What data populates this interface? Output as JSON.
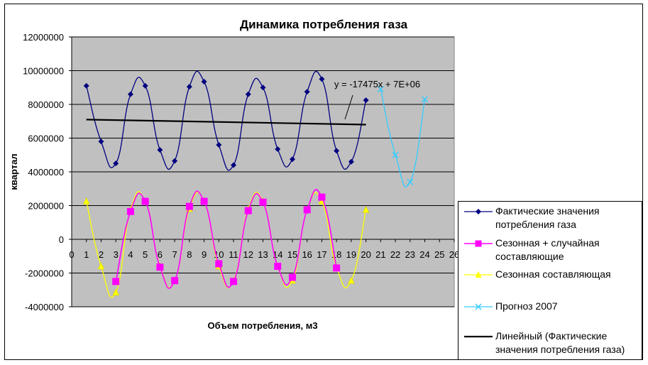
{
  "chart_data": {
    "type": "line",
    "title": "Динамика потребления газа",
    "xlabel": "Объем потребления, м3",
    "ylabel": "квартал",
    "xlim": [
      0,
      26
    ],
    "ylim": [
      -4000000,
      12000000
    ],
    "x_ticks": [
      "0",
      "1",
      "2",
      "3",
      "4",
      "5",
      "6",
      "7",
      "8",
      "9",
      "10",
      "11",
      "12",
      "13",
      "14",
      "15",
      "16",
      "17",
      "18",
      "19",
      "20",
      "21",
      "22",
      "23",
      "24",
      "25",
      "26"
    ],
    "y_ticks": [
      "12000000",
      "10000000",
      "8000000",
      "6000000",
      "4000000",
      "2000000",
      "0",
      "-2000000",
      "-4000000"
    ],
    "grid": "horizontal",
    "plot_background": "#c0c0c0",
    "legend_position": "right",
    "annotation": "y = -17475x + 7E+06",
    "series": [
      {
        "name": "Фактические значения потребления газа",
        "color": "#000080",
        "marker": "diamond",
        "x": [
          1,
          2,
          3,
          4,
          5,
          6,
          7,
          8,
          9,
          10,
          11,
          12,
          13,
          14,
          15,
          16,
          17,
          18,
          19,
          20
        ],
        "y": [
          9100000,
          5800000,
          4500000,
          8600000,
          9100000,
          5300000,
          4650000,
          9050000,
          9350000,
          5600000,
          4400000,
          8600000,
          9000000,
          5350000,
          4750000,
          8750000,
          9500000,
          5250000,
          4600000,
          8250000
        ]
      },
      {
        "name": "Сезонная + случайная составляющие",
        "color": "#ff00ff",
        "marker": "square",
        "x": [
          3,
          4,
          5,
          6,
          7,
          8,
          9,
          10,
          11,
          12,
          13,
          14,
          15,
          16,
          17,
          18
        ],
        "y": [
          -2500000,
          1650000,
          2250000,
          -1650000,
          -2450000,
          1950000,
          2250000,
          -1450000,
          -2500000,
          1700000,
          2200000,
          -1600000,
          -2250000,
          1750000,
          2500000,
          -1700000
        ]
      },
      {
        "name": "Сезонная составляющая",
        "color": "#ffff00",
        "marker": "triangle",
        "x": [
          1,
          2,
          3,
          4,
          5,
          6,
          7,
          8,
          9,
          10,
          11,
          12,
          13,
          14,
          15,
          16,
          17,
          18,
          19,
          20
        ],
        "y": [
          2250000,
          -1600000,
          -3150000,
          1750000,
          2250000,
          -1600000,
          -2450000,
          1800000,
          2250000,
          -1600000,
          -2450000,
          1800000,
          2250000,
          -1600000,
          -2450000,
          1750000,
          2250000,
          -1650000,
          -2450000,
          1750000
        ]
      },
      {
        "name": "Прогноз 2007",
        "color": "#33ccff",
        "marker": "x",
        "x": [
          21,
          22,
          23,
          24
        ],
        "y": [
          8900000,
          5000000,
          3400000,
          8300000
        ]
      },
      {
        "name": "Линейный (Фактические значения потребления газа)",
        "color": "#000000",
        "marker": "none",
        "type": "trendline",
        "x": [
          1,
          20
        ],
        "y": [
          7100000,
          6800000
        ]
      }
    ]
  },
  "legend": {
    "items": [
      {
        "lines": [
          "Фактические значения",
          "потребления газа"
        ]
      },
      {
        "lines": [
          "Сезонная + случайная",
          "составляющие"
        ]
      },
      {
        "lines": [
          "Сезонная составляющая"
        ]
      },
      {
        "lines": [
          "Прогноз 2007"
        ]
      },
      {
        "lines": [
          "Линейный (Фактические",
          "значения потребления газа)"
        ]
      }
    ]
  }
}
